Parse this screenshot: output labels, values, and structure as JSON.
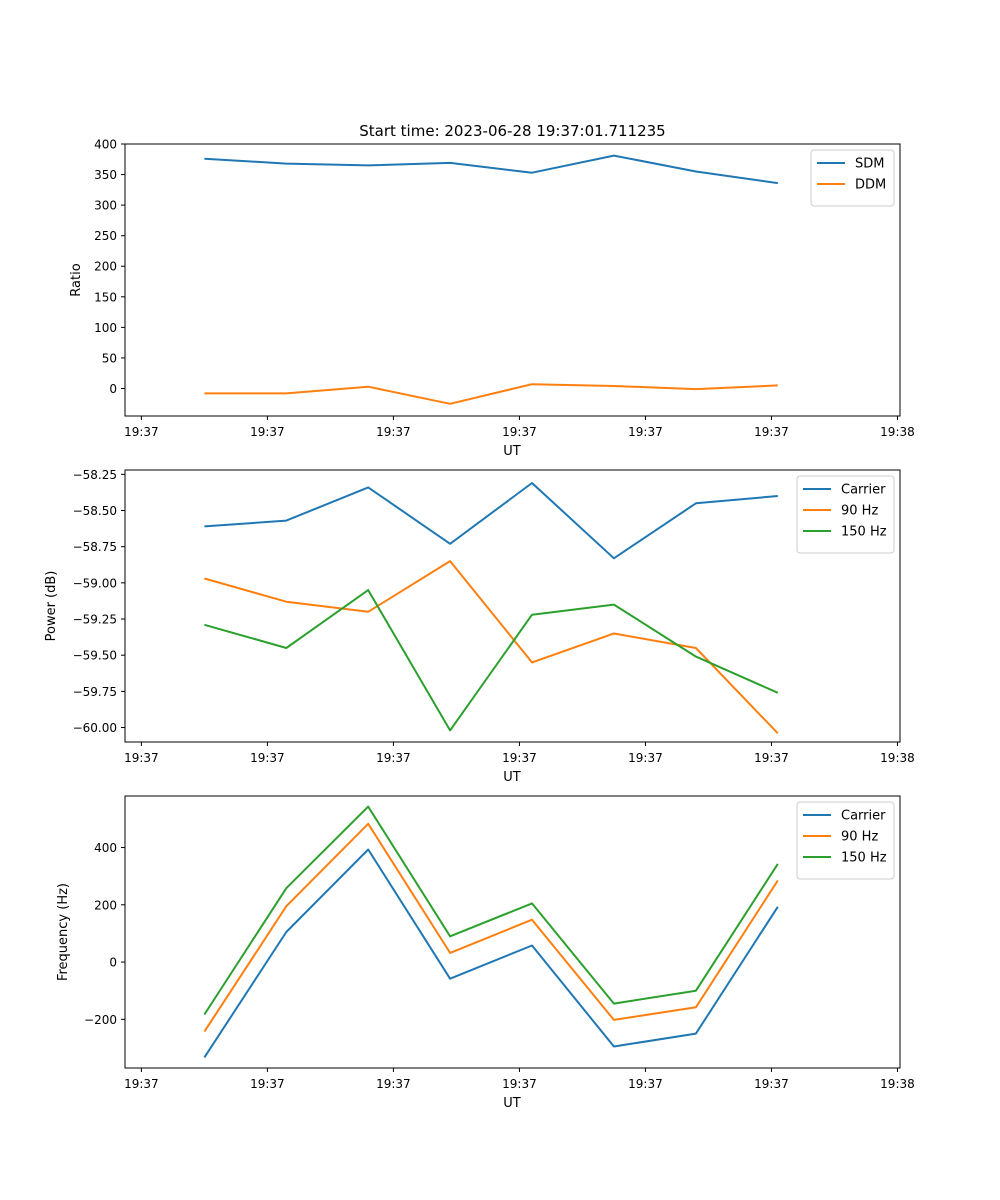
{
  "figure_title": "Start time: 2023-06-28 19:37:01.711235",
  "x_tick_labels": [
    "19:37",
    "19:37",
    "19:37",
    "19:37",
    "19:37",
    "19:37",
    "19:38"
  ],
  "x_tick_positions": [
    0,
    1,
    2,
    3,
    4,
    5,
    6
  ],
  "colors": {
    "blue": "#1f77b4",
    "orange": "#ff7f0e",
    "green": "#2ca02c"
  },
  "chart_data": [
    {
      "type": "line",
      "title": "",
      "xlabel": "UT",
      "ylabel": "Ratio",
      "x": [
        0.5,
        1.15,
        1.8,
        2.45,
        3.1,
        3.75,
        4.4,
        5.05
      ],
      "xlim": [
        -0.13,
        6.02
      ],
      "ylim": [
        -45,
        400
      ],
      "yticks": [
        0,
        50,
        100,
        150,
        200,
        250,
        300,
        350,
        400
      ],
      "ytick_labels": [
        "0",
        "50",
        "100",
        "150",
        "200",
        "250",
        "300",
        "350",
        "400"
      ],
      "legend": "top-right",
      "series": [
        {
          "name": "SDM",
          "color": "#1f77b4",
          "values": [
            376,
            368,
            365,
            369,
            353,
            381,
            355,
            336
          ]
        },
        {
          "name": "DDM",
          "color": "#ff7f0e",
          "values": [
            -8,
            -8,
            3,
            -25,
            7,
            4,
            -1,
            5
          ]
        }
      ]
    },
    {
      "type": "line",
      "title": "",
      "xlabel": "UT",
      "ylabel": "Power (dB)",
      "x": [
        0.5,
        1.15,
        1.8,
        2.45,
        3.1,
        3.75,
        4.4,
        5.05
      ],
      "xlim": [
        -0.13,
        6.02
      ],
      "ylim": [
        -60.1,
        -58.22
      ],
      "yticks": [
        -60.0,
        -59.75,
        -59.5,
        -59.25,
        -59.0,
        -58.75,
        -58.5,
        -58.25
      ],
      "ytick_labels": [
        "−60.00",
        "−59.75",
        "−59.50",
        "−59.25",
        "−59.00",
        "−58.75",
        "−58.50",
        "−58.25"
      ],
      "legend": "top-right",
      "series": [
        {
          "name": "Carrier",
          "color": "#1f77b4",
          "values": [
            -58.61,
            -58.57,
            -58.34,
            -58.73,
            -58.31,
            -58.83,
            -58.45,
            -58.4
          ]
        },
        {
          "name": "90 Hz",
          "color": "#ff7f0e",
          "values": [
            -58.97,
            -59.13,
            -59.2,
            -58.85,
            -59.55,
            -59.35,
            -59.45,
            -60.04
          ]
        },
        {
          "name": "150 Hz",
          "color": "#2ca02c",
          "values": [
            -59.29,
            -59.45,
            -59.05,
            -60.02,
            -59.22,
            -59.15,
            -59.51,
            -59.76
          ]
        }
      ]
    },
    {
      "type": "line",
      "title": "",
      "xlabel": "UT",
      "ylabel": "Frequency (Hz)",
      "x": [
        0.5,
        1.15,
        1.8,
        2.45,
        3.1,
        3.75,
        4.4,
        5.05
      ],
      "xlim": [
        -0.13,
        6.02
      ],
      "ylim": [
        -370,
        580
      ],
      "yticks": [
        -200,
        0,
        200,
        400
      ],
      "ytick_labels": [
        "−200",
        "0",
        "200",
        "400"
      ],
      "legend": "top-right",
      "series": [
        {
          "name": "Carrier",
          "color": "#1f77b4",
          "values": [
            -333,
            105,
            393,
            -58,
            58,
            -295,
            -250,
            193
          ]
        },
        {
          "name": "90 Hz",
          "color": "#ff7f0e",
          "values": [
            -243,
            195,
            483,
            32,
            148,
            -202,
            -158,
            285
          ]
        },
        {
          "name": "150 Hz",
          "color": "#2ca02c",
          "values": [
            -183,
            258,
            543,
            90,
            205,
            -145,
            -100,
            343
          ]
        }
      ]
    }
  ]
}
